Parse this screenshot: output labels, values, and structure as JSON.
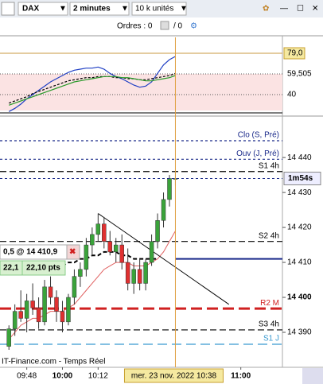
{
  "toolbar": {
    "symbol": "DAX",
    "timeframe": "2 minutes",
    "size": "10 k unités"
  },
  "orders": {
    "label": "Ordres : 0",
    "slash": "/ 0"
  },
  "indicator": {
    "type": "line",
    "ylim": [
      20.5,
      94
    ],
    "yticks": [
      {
        "value": 79,
        "label": "79,0"
      },
      {
        "value": 59.505,
        "label": "59,505"
      },
      40
    ],
    "series": [
      {
        "color": "#1f3fc4",
        "values": [
          24,
          27,
          31,
          36,
          40,
          44,
          48,
          52,
          55,
          58,
          61,
          63,
          64,
          65,
          65,
          66,
          64,
          60,
          57,
          55,
          52,
          49,
          47,
          48,
          52,
          60,
          68,
          73,
          76
        ]
      },
      {
        "color": "#000000",
        "dash": true,
        "values": [
          32,
          34,
          36,
          38,
          41,
          43,
          45,
          47,
          49,
          51,
          53,
          54,
          55,
          56,
          56,
          57,
          57,
          57,
          56,
          56,
          55,
          55,
          54,
          54,
          55,
          56,
          57,
          58,
          60
        ]
      },
      {
        "color": "#2a9a2a",
        "values": [
          30,
          32,
          34,
          36,
          38,
          40,
          42,
          44,
          46,
          48,
          50,
          52,
          53,
          54,
          55,
          56,
          57,
          57,
          57,
          56,
          56,
          55,
          54,
          53,
          53,
          54,
          55,
          56,
          58
        ]
      }
    ]
  },
  "chart_data": {
    "type": "candlestick",
    "x": [
      "09:42",
      "09:44",
      "09:46",
      "09:48",
      "09:50",
      "09:52",
      "09:54",
      "09:56",
      "09:58",
      "10:00",
      "10:02",
      "10:04",
      "10:06",
      "10:08",
      "10:10",
      "10:12",
      "10:14",
      "10:16",
      "10:18",
      "10:20",
      "10:22",
      "10:24",
      "10:26",
      "10:28",
      "10:30",
      "10:32",
      "10:34",
      "10:36",
      "10:38"
    ],
    "open": [
      14386,
      14391,
      14396,
      14394,
      14399,
      14397,
      14393,
      14403,
      14400,
      14396,
      14393,
      14400,
      14406,
      14408,
      14415,
      14418,
      14421,
      14416,
      14413,
      14415,
      14410,
      14404,
      14408,
      14404,
      14410,
      14416,
      14422,
      14428,
      14434
    ],
    "high": [
      14392,
      14398,
      14402,
      14401,
      14404,
      14400,
      14405,
      14406,
      14402,
      14399,
      14401,
      14408,
      14410,
      14417,
      14420,
      14424,
      14423,
      14419,
      14417,
      14418,
      14414,
      14410,
      14411,
      14411,
      14418,
      14424,
      14430,
      14435,
      14436
    ],
    "low": [
      14385,
      14389,
      14393,
      14390,
      14395,
      14391,
      14392,
      14398,
      14393,
      14390,
      14392,
      14398,
      14403,
      14406,
      14412,
      14416,
      14414,
      14412,
      14410,
      14408,
      14402,
      14401,
      14402,
      14402,
      14409,
      14414,
      14420,
      14426,
      14432
    ],
    "close": [
      14391,
      14396,
      14394,
      14399,
      14397,
      14393,
      14403,
      14400,
      14396,
      14393,
      14400,
      14406,
      14408,
      14415,
      14418,
      14421,
      14416,
      14413,
      14415,
      14410,
      14404,
      14408,
      14404,
      14410,
      14416,
      14422,
      14428,
      14434,
      14434
    ],
    "up_color": "#3aa33a",
    "down_color": "#e03030",
    "overlays": [
      {
        "color": "#000000",
        "dash": true,
        "values": [
          null,
          null,
          null,
          null,
          null,
          null,
          null,
          14408,
          14409,
          14409,
          14410,
          14410,
          14411,
          14411,
          14412,
          14412,
          14413,
          14413,
          14413,
          14412,
          14412,
          14411,
          14411,
          14411,
          14411,
          14411,
          null,
          null,
          null
        ]
      },
      {
        "color": "#e06060",
        "dash": false,
        "values": [
          14388,
          14390,
          14392,
          14393,
          14394,
          14394,
          14395,
          14396,
          14396,
          14396,
          14397,
          14398,
          14400,
          14402,
          14404,
          14406,
          14408,
          14409,
          14410,
          14410,
          14410,
          14409,
          14409,
          14409,
          14410,
          14411,
          14413,
          14416,
          14419
        ]
      }
    ],
    "trendline": {
      "x": [
        "10:12",
        "10:56"
      ],
      "y": [
        14424,
        14398
      ]
    },
    "xlim": [
      "09:39",
      "11:14"
    ],
    "xticks": [
      "09:48",
      "10:00",
      "10:12",
      "11:00"
    ],
    "ylim": [
      14380,
      14451.4
    ],
    "yticks": [
      {
        "value": 14440,
        "label": "14 440"
      },
      {
        "value": 14430,
        "label": "14 430"
      },
      {
        "value": 14420,
        "label": "14 420"
      },
      {
        "value": 14410,
        "label": "14 410"
      },
      {
        "value": 14400,
        "label": "14 400"
      },
      {
        "value": 14390,
        "label": "14 390"
      }
    ],
    "levels": [
      {
        "name": "Clo (S, Pré)",
        "value": 14444.8,
        "color": "#1a2a8a",
        "dash": "3,3"
      },
      {
        "name": "Ouv (J, Pré)",
        "value": 14439.5,
        "color": "#1a2a8a",
        "dash": "3,3"
      },
      {
        "name": "S1 4h",
        "value": 14436,
        "color": "#000000",
        "dash": "8,4"
      },
      {
        "name": "S2 4h",
        "value": 14416,
        "color": "#000000",
        "dash": "8,4"
      },
      {
        "name": "R2 M",
        "value": 14396.8,
        "color": "#d02020",
        "dash": "14,6"
      },
      {
        "name": "S3 4h",
        "value": 14390.7,
        "color": "#000000",
        "dash": "8,4"
      },
      {
        "name": "S1 J",
        "value": 14386.6,
        "color": "#3a9ad0",
        "dash": "12,6"
      }
    ],
    "position_line": 14411,
    "current_price": {
      "value": 14434,
      "label": "1m54s"
    },
    "crosshair": {
      "x": "10:38",
      "label": "mer. 23 nov. 2022 10:38"
    }
  },
  "order_ticket": {
    "order": "0,5 @ 14 410,9",
    "points": "22,1",
    "points_label": "22,10 pts"
  },
  "footer": "IT-Finance.com - Temps Réel"
}
